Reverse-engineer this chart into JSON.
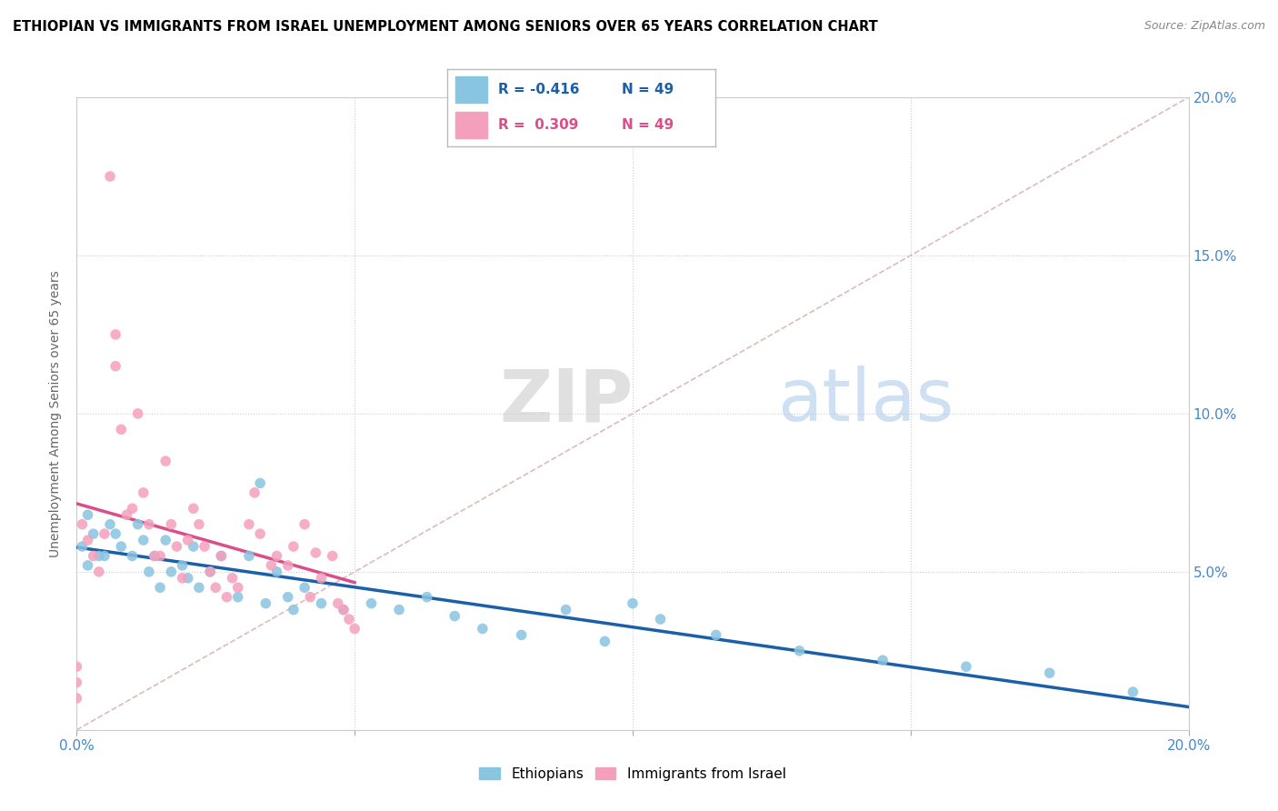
{
  "title": "ETHIOPIAN VS IMMIGRANTS FROM ISRAEL UNEMPLOYMENT AMONG SENIORS OVER 65 YEARS CORRELATION CHART",
  "source": "Source: ZipAtlas.com",
  "ylabel": "Unemployment Among Seniors over 65 years",
  "xlim": [
    0.0,
    0.2
  ],
  "ylim": [
    0.0,
    0.2
  ],
  "xticks": [
    0.0,
    0.05,
    0.1,
    0.15,
    0.2
  ],
  "yticks": [
    0.0,
    0.05,
    0.1,
    0.15,
    0.2
  ],
  "xticklabels_ends": {
    "0.0": "0.0%",
    "0.20": "20.0%"
  },
  "yticklabels": [
    "",
    "5.0%",
    "10.0%",
    "15.0%",
    "20.0%"
  ],
  "blue_color": "#89c4e1",
  "pink_color": "#f4a0bc",
  "blue_line_color": "#1a5fa8",
  "pink_line_color": "#d94f8a",
  "ref_line_color": "#ddbbbb",
  "watermark_zip_color": "#c8c8c8",
  "watermark_atlas_color": "#a8c8e8",
  "legend_R_blue": "-0.416",
  "legend_N_blue": "49",
  "legend_R_pink": "0.309",
  "legend_N_pink": "49",
  "ethiopians_label": "Ethiopians",
  "israel_label": "Immigrants from Israel",
  "blue_scatter_x": [
    0.002,
    0.003,
    0.001,
    0.004,
    0.002,
    0.006,
    0.007,
    0.008,
    0.005,
    0.011,
    0.012,
    0.01,
    0.013,
    0.016,
    0.014,
    0.017,
    0.015,
    0.021,
    0.019,
    0.026,
    0.024,
    0.022,
    0.031,
    0.029,
    0.036,
    0.034,
    0.041,
    0.039,
    0.044,
    0.033,
    0.02,
    0.038,
    0.048,
    0.053,
    0.063,
    0.058,
    0.068,
    0.073,
    0.088,
    0.1,
    0.115,
    0.13,
    0.145,
    0.16,
    0.175,
    0.19,
    0.095,
    0.105,
    0.08
  ],
  "blue_scatter_y": [
    0.068,
    0.062,
    0.058,
    0.055,
    0.052,
    0.065,
    0.062,
    0.058,
    0.055,
    0.065,
    0.06,
    0.055,
    0.05,
    0.06,
    0.055,
    0.05,
    0.045,
    0.058,
    0.052,
    0.055,
    0.05,
    0.045,
    0.055,
    0.042,
    0.05,
    0.04,
    0.045,
    0.038,
    0.04,
    0.078,
    0.048,
    0.042,
    0.038,
    0.04,
    0.042,
    0.038,
    0.036,
    0.032,
    0.038,
    0.04,
    0.03,
    0.025,
    0.022,
    0.02,
    0.018,
    0.012,
    0.028,
    0.035,
    0.03
  ],
  "pink_scatter_x": [
    0.001,
    0.002,
    0.003,
    0.004,
    0.006,
    0.007,
    0.007,
    0.008,
    0.011,
    0.012,
    0.013,
    0.014,
    0.016,
    0.017,
    0.018,
    0.015,
    0.019,
    0.021,
    0.022,
    0.026,
    0.024,
    0.025,
    0.031,
    0.032,
    0.036,
    0.041,
    0.042,
    0.046,
    0.005,
    0.009,
    0.01,
    0.023,
    0.028,
    0.033,
    0.038,
    0.043,
    0.029,
    0.027,
    0.035,
    0.039,
    0.044,
    0.047,
    0.048,
    0.049,
    0.05,
    0.02,
    0.0,
    0.0,
    0.0
  ],
  "pink_scatter_y": [
    0.065,
    0.06,
    0.055,
    0.05,
    0.175,
    0.125,
    0.115,
    0.095,
    0.1,
    0.075,
    0.065,
    0.055,
    0.085,
    0.065,
    0.058,
    0.055,
    0.048,
    0.07,
    0.065,
    0.055,
    0.05,
    0.045,
    0.065,
    0.075,
    0.055,
    0.065,
    0.042,
    0.055,
    0.062,
    0.068,
    0.07,
    0.058,
    0.048,
    0.062,
    0.052,
    0.056,
    0.045,
    0.042,
    0.052,
    0.058,
    0.048,
    0.04,
    0.038,
    0.035,
    0.032,
    0.06,
    0.01,
    0.015,
    0.02
  ]
}
